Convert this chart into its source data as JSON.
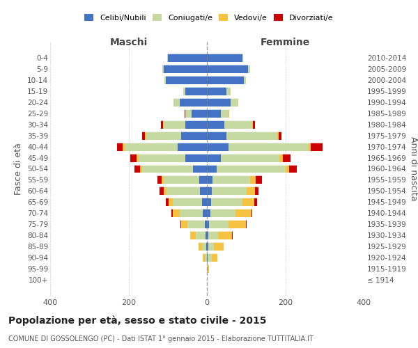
{
  "age_groups": [
    "100+",
    "95-99",
    "90-94",
    "85-89",
    "80-84",
    "75-79",
    "70-74",
    "65-69",
    "60-64",
    "55-59",
    "50-54",
    "45-49",
    "40-44",
    "35-39",
    "30-34",
    "25-29",
    "20-24",
    "15-19",
    "10-14",
    "5-9",
    "0-4"
  ],
  "birth_years": [
    "≤ 1914",
    "1915-1919",
    "1920-1924",
    "1925-1929",
    "1930-1934",
    "1935-1939",
    "1940-1944",
    "1945-1949",
    "1950-1954",
    "1955-1959",
    "1960-1964",
    "1965-1969",
    "1970-1974",
    "1975-1979",
    "1980-1984",
    "1985-1989",
    "1990-1994",
    "1995-1999",
    "2000-2004",
    "2005-2009",
    "2010-2014"
  ],
  "colors": {
    "celibe": "#4472C4",
    "coniugato": "#c5d9a0",
    "vedovo": "#f5c242",
    "divorziato": "#cc0000"
  },
  "maschi": {
    "celibe": [
      0,
      0,
      0,
      2,
      3,
      5,
      10,
      12,
      18,
      20,
      35,
      55,
      75,
      65,
      55,
      40,
      70,
      55,
      105,
      110,
      100
    ],
    "coniugato": [
      0,
      0,
      5,
      10,
      25,
      45,
      60,
      75,
      85,
      90,
      130,
      120,
      135,
      90,
      55,
      15,
      15,
      5,
      3,
      3,
      2
    ],
    "vedovo": [
      0,
      0,
      5,
      10,
      15,
      15,
      18,
      10,
      8,
      5,
      5,
      5,
      5,
      3,
      2,
      1,
      1,
      0,
      0,
      0,
      0
    ],
    "divorziato": [
      0,
      0,
      0,
      0,
      0,
      2,
      3,
      8,
      10,
      12,
      15,
      15,
      15,
      8,
      5,
      1,
      0,
      0,
      0,
      0,
      0
    ]
  },
  "femmine": {
    "nubile": [
      0,
      0,
      2,
      3,
      4,
      5,
      8,
      10,
      12,
      15,
      25,
      35,
      55,
      50,
      45,
      35,
      60,
      50,
      95,
      105,
      90
    ],
    "coniugata": [
      0,
      2,
      10,
      15,
      25,
      50,
      65,
      80,
      90,
      95,
      175,
      150,
      205,
      130,
      70,
      20,
      20,
      10,
      5,
      5,
      2
    ],
    "vedova": [
      0,
      3,
      15,
      25,
      35,
      45,
      40,
      30,
      20,
      15,
      10,
      8,
      5,
      3,
      2,
      1,
      0,
      0,
      0,
      0,
      0
    ],
    "divorziata": [
      0,
      0,
      0,
      0,
      1,
      2,
      3,
      8,
      10,
      15,
      20,
      20,
      30,
      8,
      5,
      1,
      0,
      0,
      0,
      0,
      0
    ]
  },
  "xlim": 400,
  "title": "Popolazione per età, sesso e stato civile - 2015",
  "subtitle": "COMUNE DI GOSSOLENGO (PC) - Dati ISTAT 1° gennaio 2015 - Elaborazione TUTTITALIA.IT",
  "ylabel_left": "Fasce di età",
  "ylabel_right": "Anni di nascita",
  "xlabel_left": "Maschi",
  "xlabel_right": "Femmine",
  "legend_labels": [
    "Celibi/Nubili",
    "Coniugati/e",
    "Vedovi/e",
    "Divorziati/e"
  ]
}
